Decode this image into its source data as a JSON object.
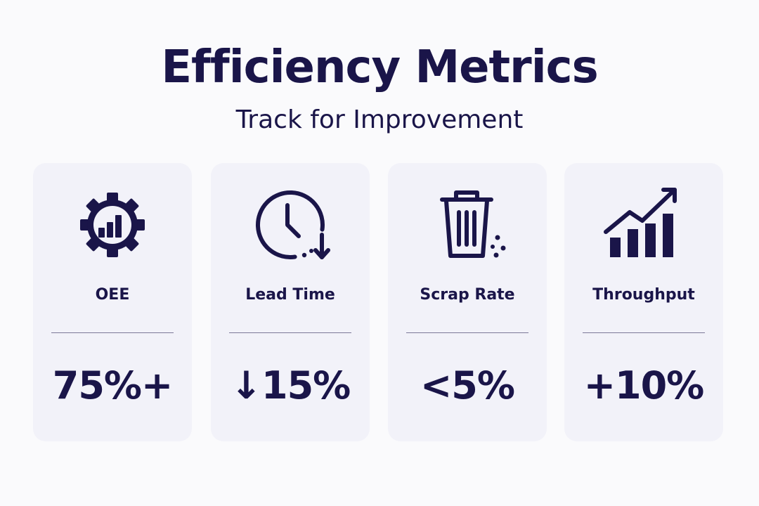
{
  "header": {
    "title": "Efficiency Metrics",
    "subtitle": "Track for Improvement"
  },
  "cards": [
    {
      "icon": "gear-bar-chart-icon",
      "label": "OEE",
      "value": "75%+"
    },
    {
      "icon": "clock-down-arrow-icon",
      "label": "Lead Time",
      "value": "↓15%"
    },
    {
      "icon": "trash-bin-icon",
      "label": "Scrap Rate",
      "value": "<5%"
    },
    {
      "icon": "trending-up-bar-chart-icon",
      "label": "Throughput",
      "value": "+10%"
    }
  ],
  "colors": {
    "text": "#1a1549",
    "card_background": "#f2f2f9",
    "page_background": "#fafafc"
  }
}
